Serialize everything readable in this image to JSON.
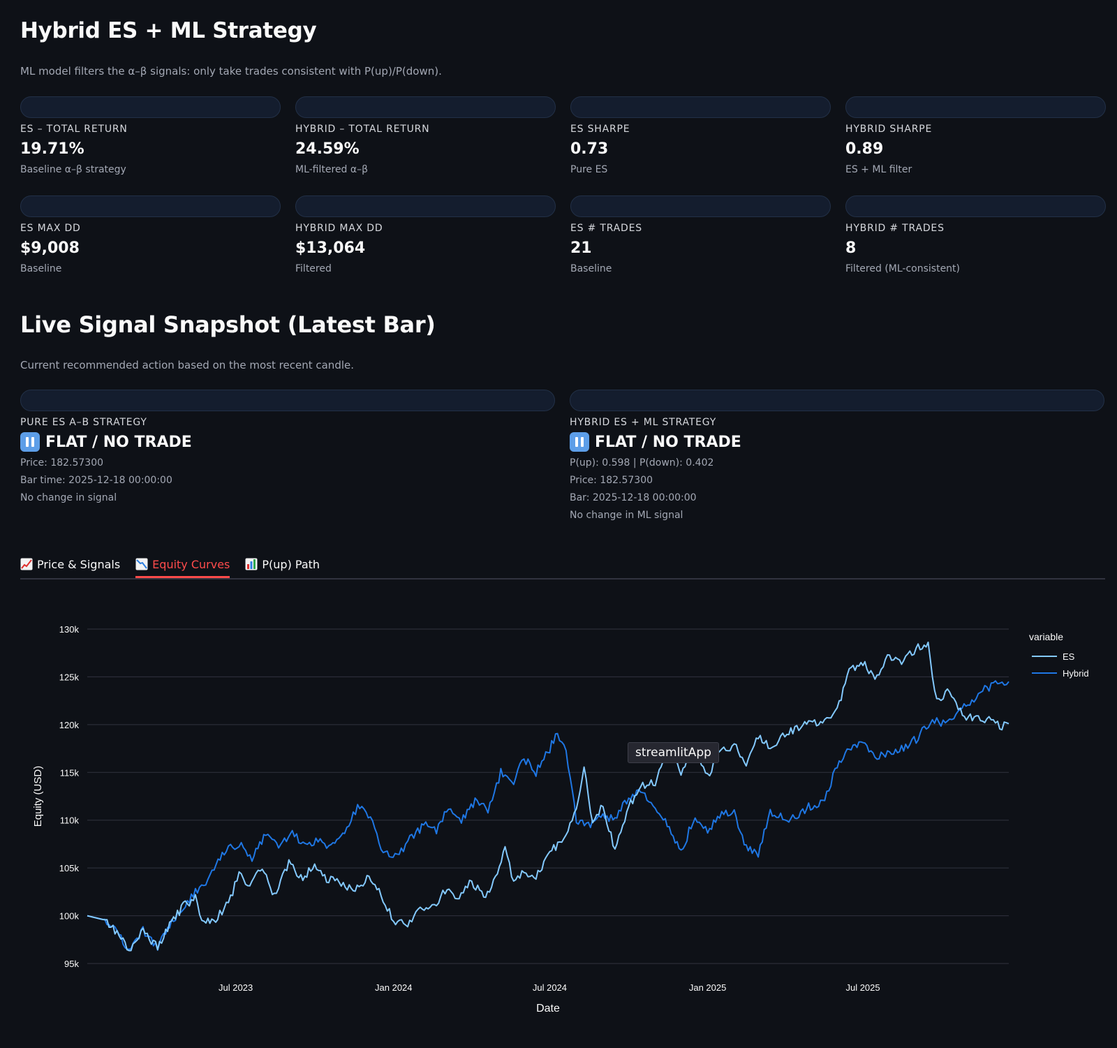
{
  "header": {
    "title": "Hybrid ES + ML Strategy",
    "subtitle": "ML model filters the α–β signals: only take trades consistent with P(up)/P(down)."
  },
  "metrics": [
    {
      "label": "ES – TOTAL RETURN",
      "value": "19.71%",
      "delta": "Baseline α–β strategy"
    },
    {
      "label": "HYBRID – TOTAL RETURN",
      "value": "24.59%",
      "delta": "ML-filtered α–β"
    },
    {
      "label": "ES SHARPE",
      "value": "0.73",
      "delta": "Pure ES"
    },
    {
      "label": "HYBRID SHARPE",
      "value": "0.89",
      "delta": "ES + ML filter"
    },
    {
      "label": "ES MAX DD",
      "value": "$9,008",
      "delta": "Baseline"
    },
    {
      "label": "HYBRID MAX DD",
      "value": "$13,064",
      "delta": "Filtered"
    },
    {
      "label": "ES # TRADES",
      "value": "21",
      "delta": "Baseline"
    },
    {
      "label": "HYBRID # TRADES",
      "value": "8",
      "delta": "Filtered (ML-consistent)"
    }
  ],
  "snapshot": {
    "title": "Live Signal Snapshot (Latest Bar)",
    "subtitle": "Current recommended action based on the most recent candle.",
    "pure": {
      "label": "PURE ES A–B STRATEGY",
      "action": "FLAT / NO TRADE",
      "lines": [
        "Price: 182.57300",
        "Bar time: 2025-12-18 00:00:00",
        "No change in signal"
      ]
    },
    "hybrid": {
      "label": "HYBRID ES + ML STRATEGY",
      "action": "FLAT / NO TRADE",
      "lines": [
        "P(up): 0.598 | P(down): 0.402",
        "Price: 182.57300",
        "Bar: 2025-12-18 00:00:00",
        "No change in ML signal"
      ]
    }
  },
  "tabs": [
    {
      "label": "Price & Signals",
      "icon": "chart-increasing-icon",
      "active": false
    },
    {
      "label": "Equity Curves",
      "icon": "chart-decreasing-icon",
      "active": true
    },
    {
      "label": "P(up) Path",
      "icon": "bar-chart-icon",
      "active": false
    }
  ],
  "tooltip": "streamlitApp",
  "chart_data": {
    "type": "line",
    "xlabel": "Date",
    "ylabel": "Equity (USD)",
    "ylim": [
      95000,
      130000
    ],
    "yticks": [
      95000,
      100000,
      105000,
      110000,
      115000,
      120000,
      125000,
      130000
    ],
    "ytick_labels": [
      "95k",
      "100k",
      "105k",
      "110k",
      "115k",
      "120k",
      "125k",
      "130k"
    ],
    "xticks": [
      "2023-07-01",
      "2024-01-01",
      "2024-07-01",
      "2025-01-01",
      "2025-07-01"
    ],
    "xtick_labels": [
      "Jul 2023",
      "Jan 2024",
      "Jul 2024",
      "Jan 2025",
      "Jul 2025"
    ],
    "xlim": [
      "2023-01-09",
      "2025-12-18"
    ],
    "legend": {
      "title": "variable",
      "position": "right"
    },
    "grid": true,
    "series": [
      {
        "name": "ES",
        "color": "#83c9ff",
        "points": [
          [
            "2023-01-09",
            100000
          ],
          [
            "2023-02-01",
            99500
          ],
          [
            "2023-02-15",
            97800
          ],
          [
            "2023-03-01",
            96300
          ],
          [
            "2023-03-15",
            98500
          ],
          [
            "2023-04-01",
            96600
          ],
          [
            "2023-04-15",
            99000
          ],
          [
            "2023-05-01",
            101000
          ],
          [
            "2023-05-15",
            101800
          ],
          [
            "2023-05-25",
            99300
          ],
          [
            "2023-06-10",
            99800
          ],
          [
            "2023-06-25",
            101800
          ],
          [
            "2023-07-05",
            104500
          ],
          [
            "2023-07-15",
            103000
          ],
          [
            "2023-08-01",
            105000
          ],
          [
            "2023-08-15",
            102000
          ],
          [
            "2023-09-01",
            105500
          ],
          [
            "2023-09-15",
            104000
          ],
          [
            "2023-10-01",
            105000
          ],
          [
            "2023-10-15",
            103800
          ],
          [
            "2023-11-01",
            103500
          ],
          [
            "2023-11-15",
            102500
          ],
          [
            "2023-12-01",
            104000
          ],
          [
            "2023-12-15",
            102500
          ],
          [
            "2024-01-01",
            99500
          ],
          [
            "2024-01-15",
            99000
          ],
          [
            "2024-02-01",
            100500
          ],
          [
            "2024-02-15",
            101000
          ],
          [
            "2024-03-01",
            102500
          ],
          [
            "2024-03-15",
            102000
          ],
          [
            "2024-04-01",
            103500
          ],
          [
            "2024-04-15",
            102000
          ],
          [
            "2024-05-01",
            104000
          ],
          [
            "2024-05-10",
            107500
          ],
          [
            "2024-05-20",
            103500
          ],
          [
            "2024-06-01",
            104500
          ],
          [
            "2024-06-15",
            104000
          ],
          [
            "2024-07-01",
            106500
          ],
          [
            "2024-07-15",
            108000
          ],
          [
            "2024-08-01",
            111000
          ],
          [
            "2024-08-10",
            115500
          ],
          [
            "2024-08-20",
            109500
          ],
          [
            "2024-09-01",
            111500
          ],
          [
            "2024-09-15",
            107000
          ],
          [
            "2024-10-01",
            111500
          ],
          [
            "2024-10-15",
            113500
          ],
          [
            "2024-11-01",
            114000
          ],
          [
            "2024-11-10",
            116000
          ],
          [
            "2024-11-20",
            118300
          ],
          [
            "2024-12-01",
            114500
          ],
          [
            "2024-12-15",
            117500
          ],
          [
            "2025-01-01",
            114500
          ],
          [
            "2025-01-15",
            117000
          ],
          [
            "2025-02-01",
            118000
          ],
          [
            "2025-02-15",
            115500
          ],
          [
            "2025-03-01",
            118800
          ],
          [
            "2025-03-15",
            117500
          ],
          [
            "2025-04-01",
            119000
          ],
          [
            "2025-04-15",
            119500
          ],
          [
            "2025-05-01",
            120500
          ],
          [
            "2025-05-15",
            120000
          ],
          [
            "2025-06-01",
            121500
          ],
          [
            "2025-06-15",
            125500
          ],
          [
            "2025-07-01",
            126500
          ],
          [
            "2025-07-15",
            125000
          ],
          [
            "2025-08-01",
            127200
          ],
          [
            "2025-08-15",
            126500
          ],
          [
            "2025-09-01",
            128000
          ],
          [
            "2025-09-15",
            128300
          ],
          [
            "2025-09-25",
            122500
          ],
          [
            "2025-10-10",
            123500
          ],
          [
            "2025-10-25",
            121000
          ],
          [
            "2025-11-10",
            120500
          ],
          [
            "2025-11-25",
            120500
          ],
          [
            "2025-12-10",
            119700
          ],
          [
            "2025-12-18",
            120100
          ]
        ]
      },
      {
        "name": "Hybrid",
        "color": "#1f77e4",
        "points": [
          [
            "2023-01-09",
            100000
          ],
          [
            "2023-02-01",
            99500
          ],
          [
            "2023-02-15",
            97800
          ],
          [
            "2023-03-01",
            96300
          ],
          [
            "2023-03-15",
            98500
          ],
          [
            "2023-04-01",
            96600
          ],
          [
            "2023-04-15",
            99000
          ],
          [
            "2023-05-01",
            101000
          ],
          [
            "2023-05-15",
            102500
          ],
          [
            "2023-06-01",
            104000
          ],
          [
            "2023-06-20",
            107000
          ],
          [
            "2023-07-05",
            107500
          ],
          [
            "2023-07-20",
            106000
          ],
          [
            "2023-08-05",
            108500
          ],
          [
            "2023-08-20",
            107200
          ],
          [
            "2023-09-05",
            108500
          ],
          [
            "2023-09-20",
            107500
          ],
          [
            "2023-10-05",
            108000
          ],
          [
            "2023-10-20",
            107000
          ],
          [
            "2023-11-05",
            108500
          ],
          [
            "2023-11-20",
            111500
          ],
          [
            "2023-12-05",
            110500
          ],
          [
            "2023-12-20",
            106500
          ],
          [
            "2024-01-05",
            106000
          ],
          [
            "2024-01-20",
            108000
          ],
          [
            "2024-02-05",
            109500
          ],
          [
            "2024-02-20",
            109000
          ],
          [
            "2024-03-05",
            111500
          ],
          [
            "2024-03-20",
            110000
          ],
          [
            "2024-04-05",
            112000
          ],
          [
            "2024-04-20",
            111000
          ],
          [
            "2024-05-05",
            115000
          ],
          [
            "2024-05-20",
            114000
          ],
          [
            "2024-06-01",
            116500
          ],
          [
            "2024-06-15",
            115000
          ],
          [
            "2024-07-01",
            117500
          ],
          [
            "2024-07-10",
            119200
          ],
          [
            "2024-07-20",
            117000
          ],
          [
            "2024-08-01",
            110000
          ],
          [
            "2024-08-15",
            109500
          ],
          [
            "2024-09-01",
            110500
          ],
          [
            "2024-09-15",
            110000
          ],
          [
            "2024-10-01",
            112500
          ],
          [
            "2024-10-15",
            113000
          ],
          [
            "2024-11-01",
            111000
          ],
          [
            "2024-11-15",
            109500
          ],
          [
            "2024-12-01",
            106500
          ],
          [
            "2024-12-15",
            110000
          ],
          [
            "2025-01-01",
            109000
          ],
          [
            "2025-01-15",
            110500
          ],
          [
            "2025-02-01",
            111000
          ],
          [
            "2025-02-15",
            107000
          ],
          [
            "2025-03-01",
            106500
          ],
          [
            "2025-03-15",
            111000
          ],
          [
            "2025-04-01",
            110000
          ],
          [
            "2025-04-15",
            110500
          ],
          [
            "2025-05-01",
            111500
          ],
          [
            "2025-05-15",
            112000
          ],
          [
            "2025-06-01",
            115500
          ],
          [
            "2025-06-15",
            117500
          ],
          [
            "2025-07-01",
            118000
          ],
          [
            "2025-07-15",
            116500
          ],
          [
            "2025-08-01",
            117000
          ],
          [
            "2025-08-15",
            117500
          ],
          [
            "2025-09-01",
            118500
          ],
          [
            "2025-09-20",
            120500
          ],
          [
            "2025-10-05",
            120000
          ],
          [
            "2025-10-20",
            121500
          ],
          [
            "2025-11-05",
            122500
          ],
          [
            "2025-11-20",
            123800
          ],
          [
            "2025-12-05",
            124200
          ],
          [
            "2025-12-18",
            124500
          ]
        ]
      }
    ]
  }
}
